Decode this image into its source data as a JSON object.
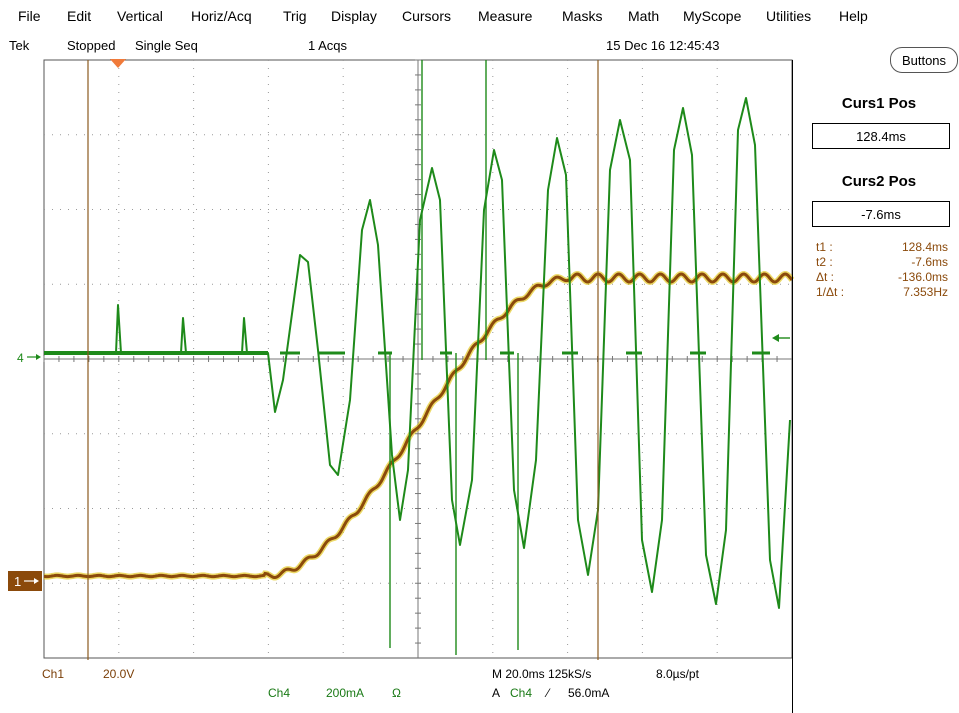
{
  "menu": [
    "File",
    "Edit",
    "Vertical",
    "Horiz/Acq",
    "Trig",
    "Display",
    "Cursors",
    "Measure",
    "Masks",
    "Math",
    "MyScope",
    "Utilities",
    "Help"
  ],
  "status": {
    "brand": "Tek",
    "run_state": "Stopped",
    "mode": "Single Seq",
    "acqs": "1 Acqs",
    "datetime": "15 Dec 16 12:45:43"
  },
  "buttons_label": "Buttons",
  "cursors": {
    "curs1_title": "Curs1 Pos",
    "curs1_value": "128.4ms",
    "curs2_title": "Curs2 Pos",
    "curs2_value": "-7.6ms",
    "readout": [
      {
        "label": "t1 :",
        "value": "128.4ms"
      },
      {
        "label": "t2 :",
        "value": "-7.6ms"
      },
      {
        "label": "Δt :",
        "value": "-136.0ms"
      },
      {
        "label": "1/Δt :",
        "value": "7.353Hz"
      }
    ]
  },
  "markers": {
    "ch4": "4",
    "ch1": "1"
  },
  "bottom": {
    "ch1_label": "Ch1",
    "ch1_scale": "20.0V",
    "ch4_label": "Ch4",
    "ch4_scale": "200mA",
    "ch4_unit": "Ω",
    "timebase": "M 20.0ms 125kS/s",
    "pt": "8.0µs/pt",
    "trigger_prefix": "A",
    "trigger_src": "Ch4",
    "trigger_slope": "⁄",
    "trigger_level": "56.0mA"
  },
  "colors": {
    "ch1": "#8b4a0b",
    "ch4": "#1e8a1a",
    "ch1_glow": "#e0c000",
    "grid": "#9a9a9a",
    "cursor": "#8b5a20"
  },
  "icons": {
    "trigger_pos": "trigger-position-icon",
    "ch4_marker": "ch4-ground-marker-icon",
    "ch1_marker": "ch1-ground-marker-icon",
    "trigger_level": "trigger-level-arrow-icon"
  }
}
